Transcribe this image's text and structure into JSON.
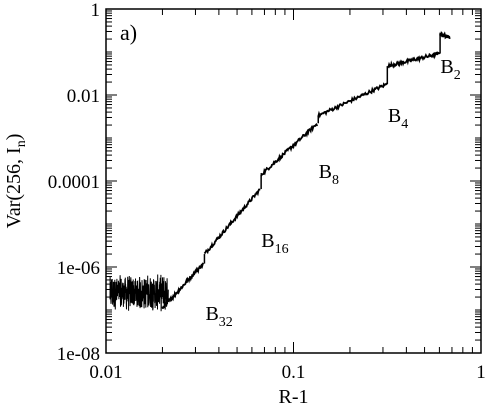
{
  "chart_data": {
    "type": "line",
    "panel_label": "a)",
    "xlabel": "R-1",
    "ylabel": "Var(256, I_n)",
    "ylabel_main": "Var(256, I",
    "ylabel_sub": "n",
    "ylabel_close": ")",
    "x_scale": "log",
    "y_scale": "log",
    "xlim": [
      0.01,
      1
    ],
    "ylim": [
      1e-08,
      1
    ],
    "x_ticks": [
      {
        "value": 0.01,
        "label": "0.01"
      },
      {
        "value": 0.1,
        "label": "0.1"
      },
      {
        "value": 1,
        "label": "1"
      }
    ],
    "y_ticks": [
      {
        "value": 1e-08,
        "label": "1e-08"
      },
      {
        "value": 1e-06,
        "label": "1e-06"
      },
      {
        "value": 0.0001,
        "label": "0.0001"
      },
      {
        "value": 0.01,
        "label": "0.01"
      },
      {
        "value": 1,
        "label": "1"
      }
    ],
    "grid": false,
    "series": [
      {
        "color": "#000000",
        "noise_region": {
          "x_range": [
            0.0105,
            0.0215
          ],
          "y_center": 2.5e-07,
          "y_spread_decades": 0.9
        },
        "segments": [
          {
            "x": [
              0.02,
              0.033
            ],
            "y": [
              1.1e-07,
              1.2e-06
            ]
          },
          {
            "x": [
              0.0335,
              0.0665
            ],
            "y": [
              2e-06,
              6.5e-05
            ]
          },
          {
            "x": [
              0.0672,
              0.1345
            ],
            "y": [
              0.00014,
              0.0022
            ]
          },
          {
            "x": [
              0.1355,
              0.315
            ],
            "y": [
              0.0033,
              0.018
            ]
          },
          {
            "x": [
              0.3165,
              0.6
            ],
            "y": [
              0.047,
              0.092
            ]
          },
          {
            "x": [
              0.605,
              0.68
            ],
            "y": [
              0.26,
              0.22
            ]
          }
        ]
      }
    ],
    "annotations": [
      {
        "main": "B",
        "sub": "32",
        "x": 0.0335,
        "y": 1e-07
      },
      {
        "main": "B",
        "sub": "16",
        "x": 0.0665,
        "y": 5e-06
      },
      {
        "main": "B",
        "sub": "8",
        "x": 0.1345,
        "y": 0.0002
      },
      {
        "main": "B",
        "sub": "4",
        "x": 0.315,
        "y": 0.004
      },
      {
        "main": "B",
        "sub": "2",
        "x": 0.6,
        "y": 0.055
      }
    ]
  }
}
